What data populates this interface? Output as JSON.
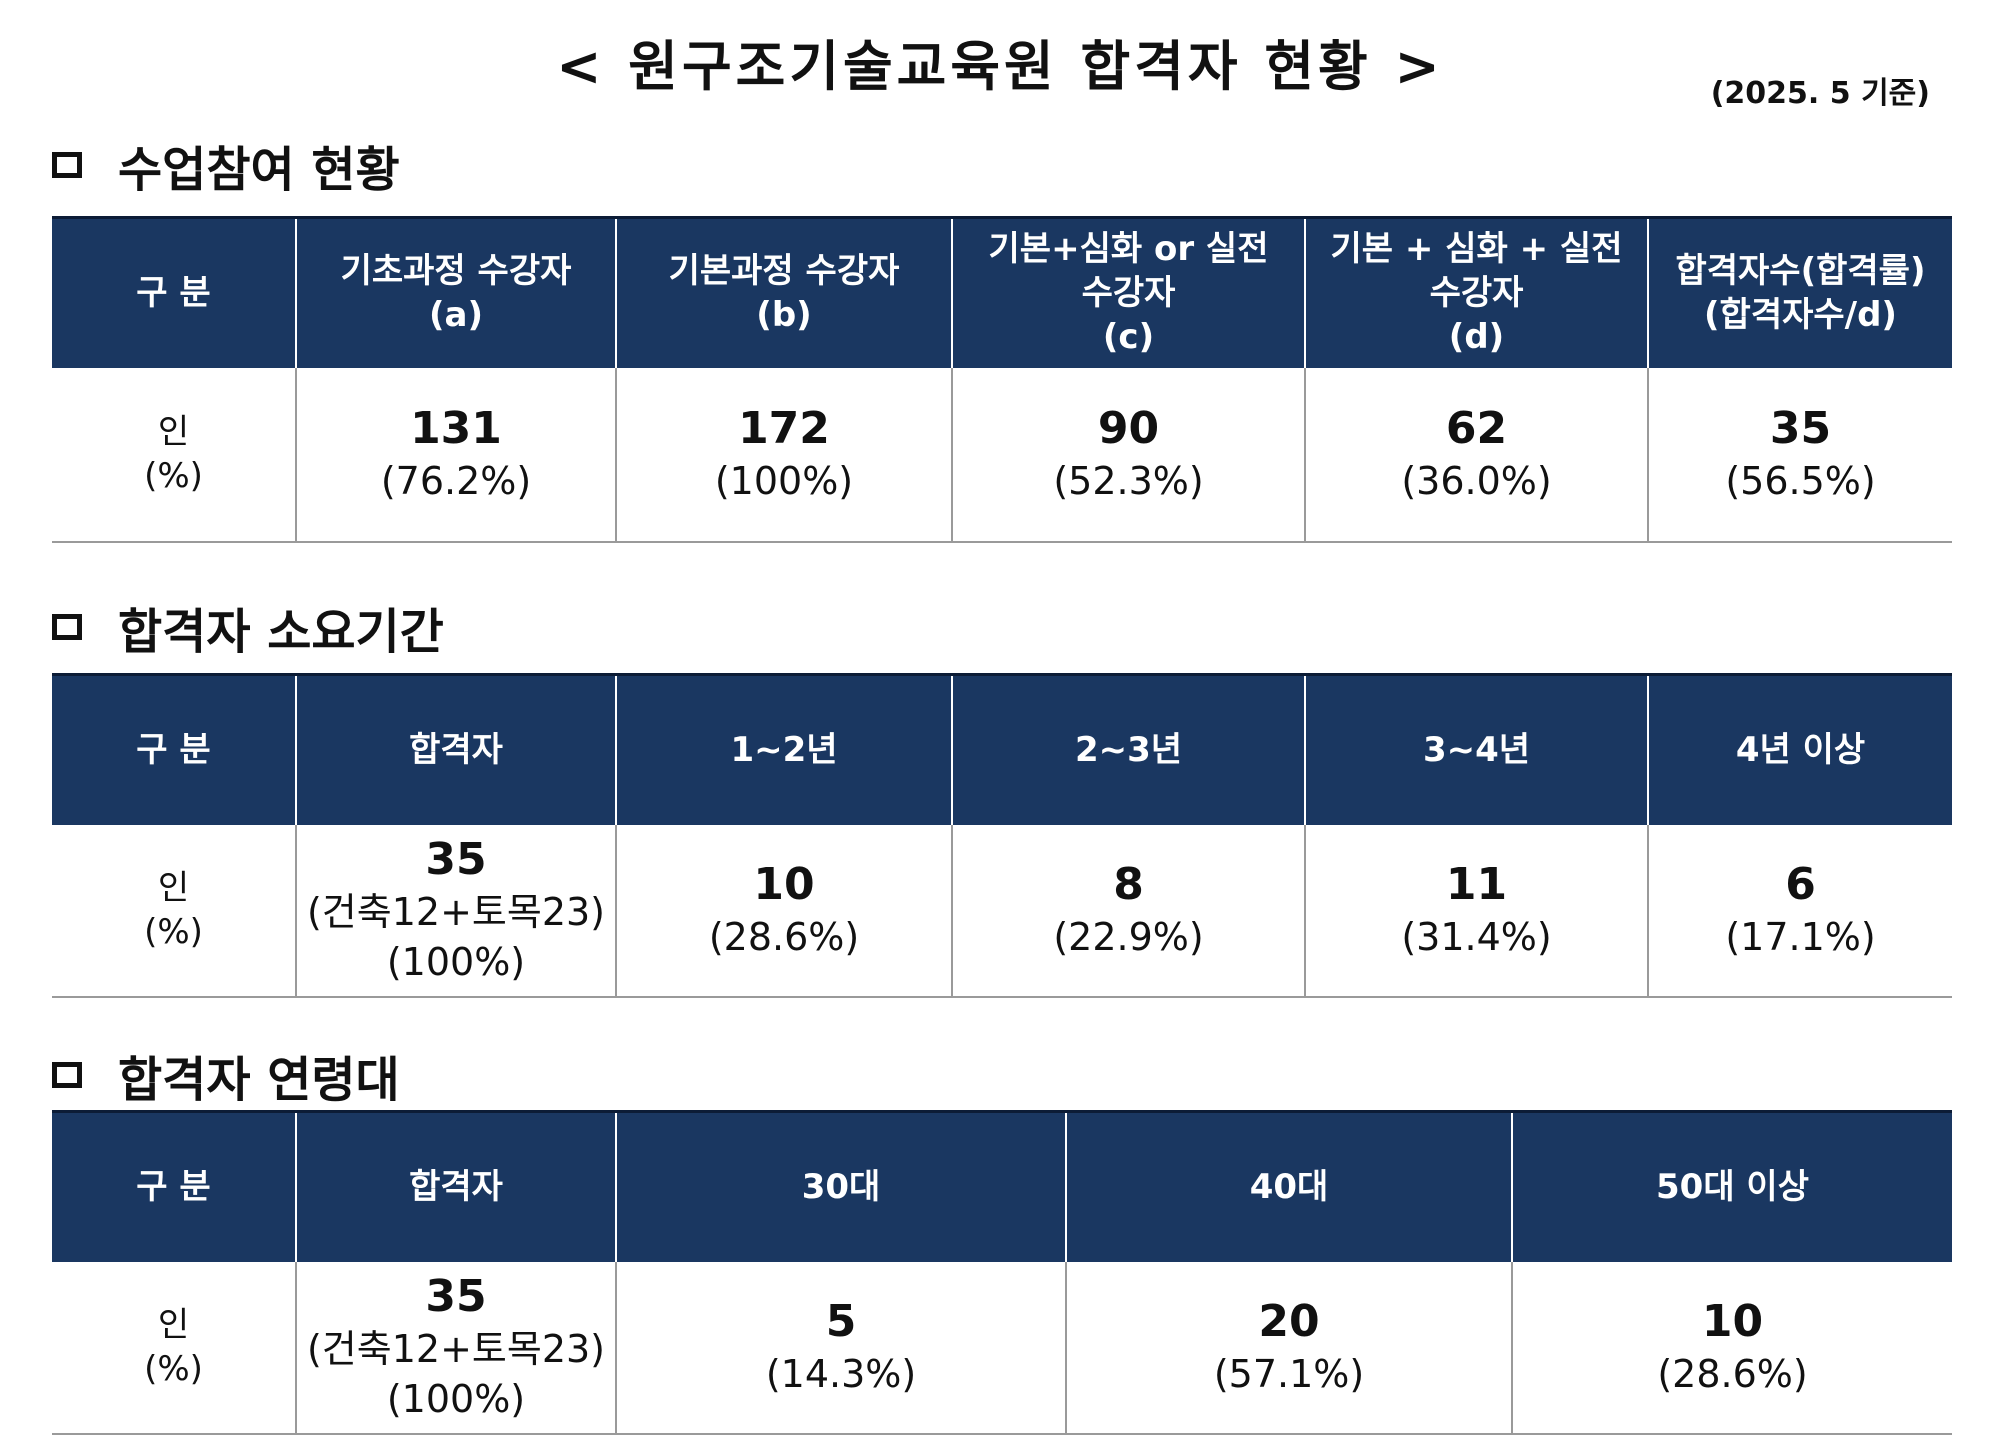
{
  "title": "<  원구조기술교육원 합격자 현황  >",
  "basis_date": "(2025. 5 기준)",
  "sections": [
    {
      "heading": "수업참여 현황",
      "header_cells": [
        [
          "구 분"
        ],
        [
          "기초과정 수강자",
          "(a)"
        ],
        [
          "기본과정 수강자",
          "(b)"
        ],
        [
          "기본+심화 or 실전",
          "수강자",
          "(c)"
        ],
        [
          "기본 + 심화 + 실전",
          "수강자",
          "(d)"
        ],
        [
          "합격자수(합격률)",
          "(합격자수/d)"
        ]
      ],
      "row_label": [
        "인",
        "(%)"
      ],
      "values": [
        {
          "count": "131",
          "pct": "(76.2%)"
        },
        {
          "count": "172",
          "pct": "(100%)"
        },
        {
          "count": "90",
          "pct": "(52.3%)"
        },
        {
          "count": "62",
          "pct": "(36.0%)"
        },
        {
          "count": "35",
          "pct": "(56.5%)"
        }
      ]
    },
    {
      "heading": "합격자 소요기간",
      "header_cells": [
        [
          "구 분"
        ],
        [
          "합격자"
        ],
        [
          "1~2년"
        ],
        [
          "2~3년"
        ],
        [
          "3~4년"
        ],
        [
          "4년 이상"
        ]
      ],
      "row_label": [
        "인",
        "(%)"
      ],
      "values": [
        {
          "count": "35",
          "breakdown": "(건축12+토목23)",
          "pct": "(100%)"
        },
        {
          "count": "10",
          "pct": "(28.6%)"
        },
        {
          "count": "8",
          "pct": "(22.9%)"
        },
        {
          "count": "11",
          "pct": "(31.4%)"
        },
        {
          "count": "6",
          "pct": "(17.1%)"
        }
      ]
    },
    {
      "heading": "합격자 연령대",
      "header_cells": [
        [
          "구 분"
        ],
        [
          "합격자"
        ],
        [
          "30대"
        ],
        [
          "40대"
        ],
        [
          "50대 이상"
        ]
      ],
      "row_label": [
        "인",
        "(%)"
      ],
      "values": [
        {
          "count": "35",
          "breakdown": "(건축12+토목23)",
          "pct": "(100%)"
        },
        {
          "count": "5",
          "pct": "(14.3%)"
        },
        {
          "count": "20",
          "pct": "(57.1%)"
        },
        {
          "count": "10",
          "pct": "(28.6%)"
        }
      ]
    }
  ],
  "colors": {
    "header_bg": "#1a3761",
    "header_text": "#ffffff",
    "grid_line": "#9a9a9a"
  }
}
